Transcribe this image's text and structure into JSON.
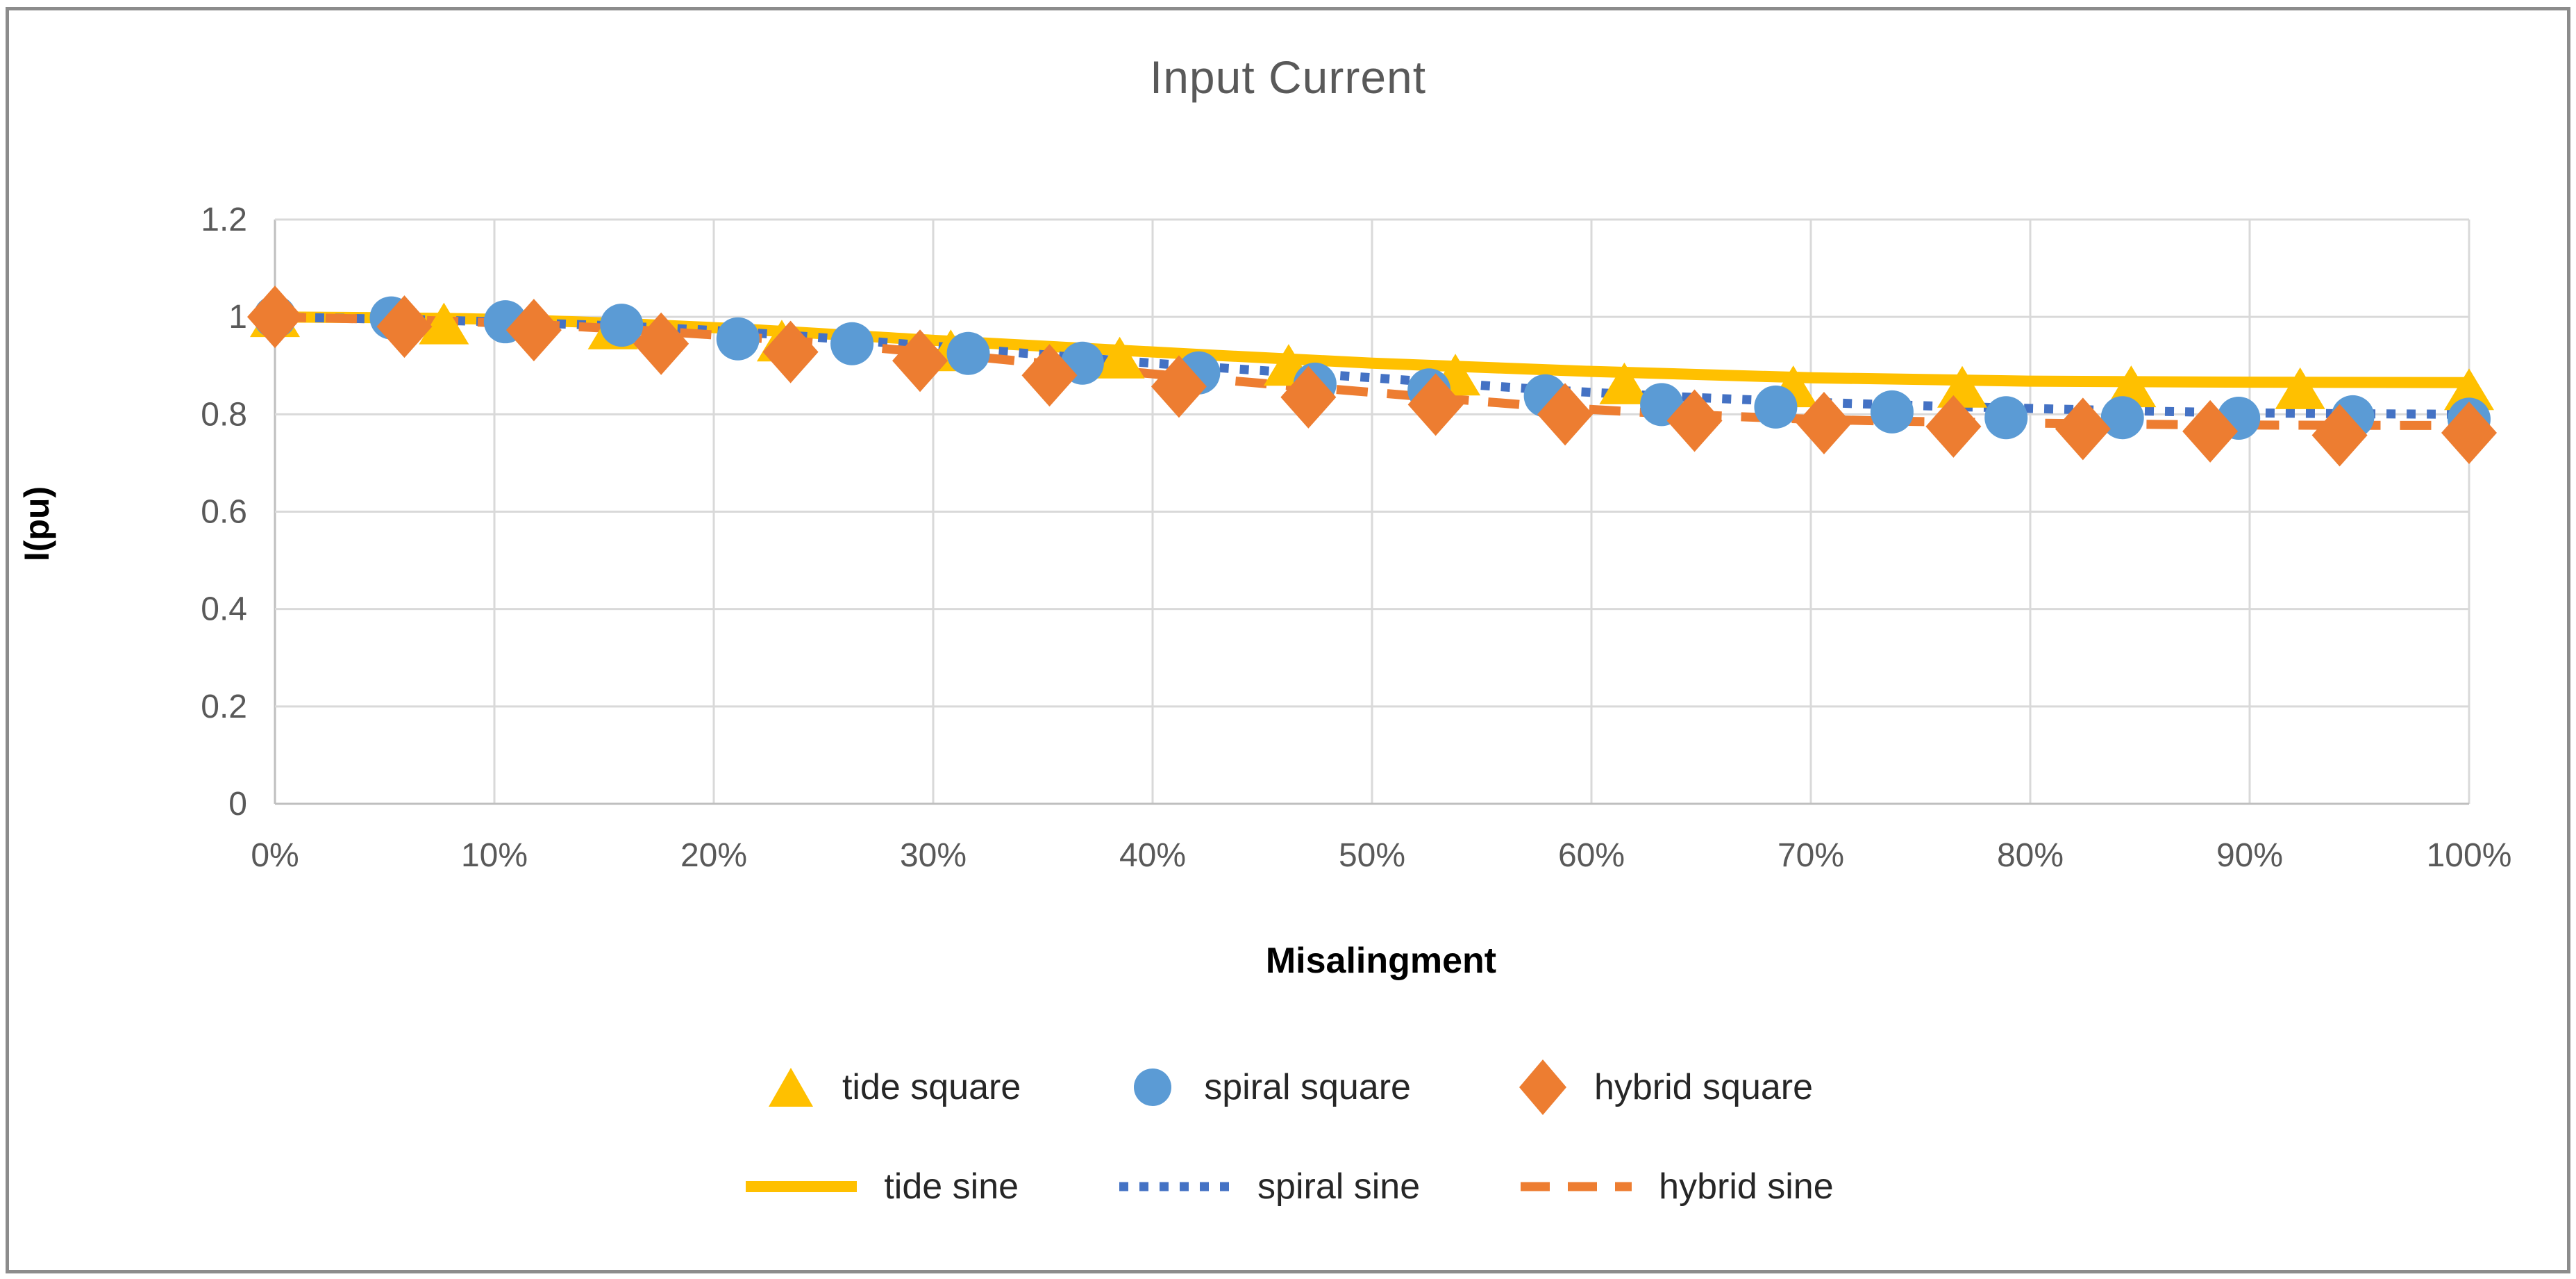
{
  "chart_data": {
    "type": "line",
    "title": "Input Current",
    "xlabel": "Misalingment",
    "ylabel": "I(pu)",
    "xlim": [
      0,
      100
    ],
    "ylim": [
      0,
      1.2
    ],
    "grid": true,
    "legend_position": "bottom",
    "x_tick_labels": [
      "0%",
      "10%",
      "20%",
      "30%",
      "40%",
      "50%",
      "60%",
      "70%",
      "80%",
      "90%",
      "100%"
    ],
    "x_tick_values": [
      0,
      10,
      20,
      30,
      40,
      50,
      60,
      70,
      80,
      90,
      100
    ],
    "y_tick_labels": [
      "1.2",
      "1",
      "0.8",
      "0.6",
      "0.4",
      "0.2",
      "0"
    ],
    "y_tick_values": [
      1.2,
      1.0,
      0.8,
      0.6,
      0.4,
      0.2,
      0
    ],
    "colors": {
      "gold": "#FFC000",
      "blue_marker": "#5B9BD5",
      "blue_line": "#4472C4",
      "orange": "#ED7D31",
      "gridline": "#D9D9D9",
      "axis_line": "#BFBFBF",
      "title_gray": "#595959"
    },
    "series": [
      {
        "name": "tide square",
        "type": "scatter",
        "marker": "triangle",
        "color": "#FFC000",
        "x": [
          0,
          7.7,
          15.4,
          23.1,
          30.8,
          38.5,
          46.2,
          53.8,
          61.5,
          69.2,
          76.9,
          84.6,
          92.3,
          100
        ],
        "y": [
          1.0,
          0.985,
          0.975,
          0.95,
          0.93,
          0.915,
          0.9,
          0.88,
          0.862,
          0.856,
          0.855,
          0.856,
          0.852,
          0.85
        ]
      },
      {
        "name": "spiral square",
        "type": "scatter",
        "marker": "circle",
        "color": "#5B9BD5",
        "x": [
          0,
          5.3,
          10.5,
          15.8,
          21.1,
          26.3,
          31.6,
          36.8,
          42.1,
          47.4,
          52.6,
          57.9,
          63.2,
          68.4,
          73.7,
          78.9,
          84.2,
          89.5,
          94.7,
          100
        ],
        "y": [
          1.0,
          0.998,
          0.99,
          0.983,
          0.955,
          0.945,
          0.925,
          0.905,
          0.885,
          0.862,
          0.85,
          0.838,
          0.82,
          0.815,
          0.805,
          0.793,
          0.793,
          0.792,
          0.795,
          0.79
        ]
      },
      {
        "name": "hybrid square",
        "type": "scatter",
        "marker": "diamond",
        "color": "#ED7D31",
        "x": [
          0,
          5.9,
          11.8,
          17.6,
          23.5,
          29.4,
          35.3,
          41.2,
          47.1,
          52.9,
          58.8,
          64.7,
          70.6,
          76.5,
          82.4,
          88.2,
          94.1,
          100
        ],
        "y": [
          1.0,
          0.98,
          0.973,
          0.945,
          0.928,
          0.91,
          0.88,
          0.857,
          0.835,
          0.82,
          0.8,
          0.787,
          0.782,
          0.775,
          0.77,
          0.765,
          0.757,
          0.762
        ]
      },
      {
        "name": "tide sine",
        "type": "line",
        "line_style": "solid",
        "color": "#FFC000",
        "x": [
          0,
          10,
          20,
          30,
          40,
          50,
          60,
          70,
          80,
          90,
          100
        ],
        "y": [
          1.0,
          0.995,
          0.978,
          0.952,
          0.928,
          0.905,
          0.888,
          0.875,
          0.868,
          0.866,
          0.865
        ]
      },
      {
        "name": "spiral sine",
        "type": "line",
        "line_style": "dotted",
        "color": "#4472C4",
        "x": [
          0,
          10,
          20,
          30,
          40,
          50,
          60,
          70,
          80,
          90,
          100
        ],
        "y": [
          1.0,
          0.99,
          0.972,
          0.94,
          0.905,
          0.875,
          0.845,
          0.825,
          0.812,
          0.803,
          0.8
        ]
      },
      {
        "name": "hybrid sine",
        "type": "line",
        "line_style": "dashed",
        "color": "#ED7D31",
        "x": [
          0,
          10,
          20,
          30,
          40,
          50,
          60,
          70,
          80,
          90,
          100
        ],
        "y": [
          1.0,
          0.988,
          0.963,
          0.926,
          0.883,
          0.845,
          0.81,
          0.79,
          0.782,
          0.778,
          0.777
        ]
      }
    ]
  }
}
